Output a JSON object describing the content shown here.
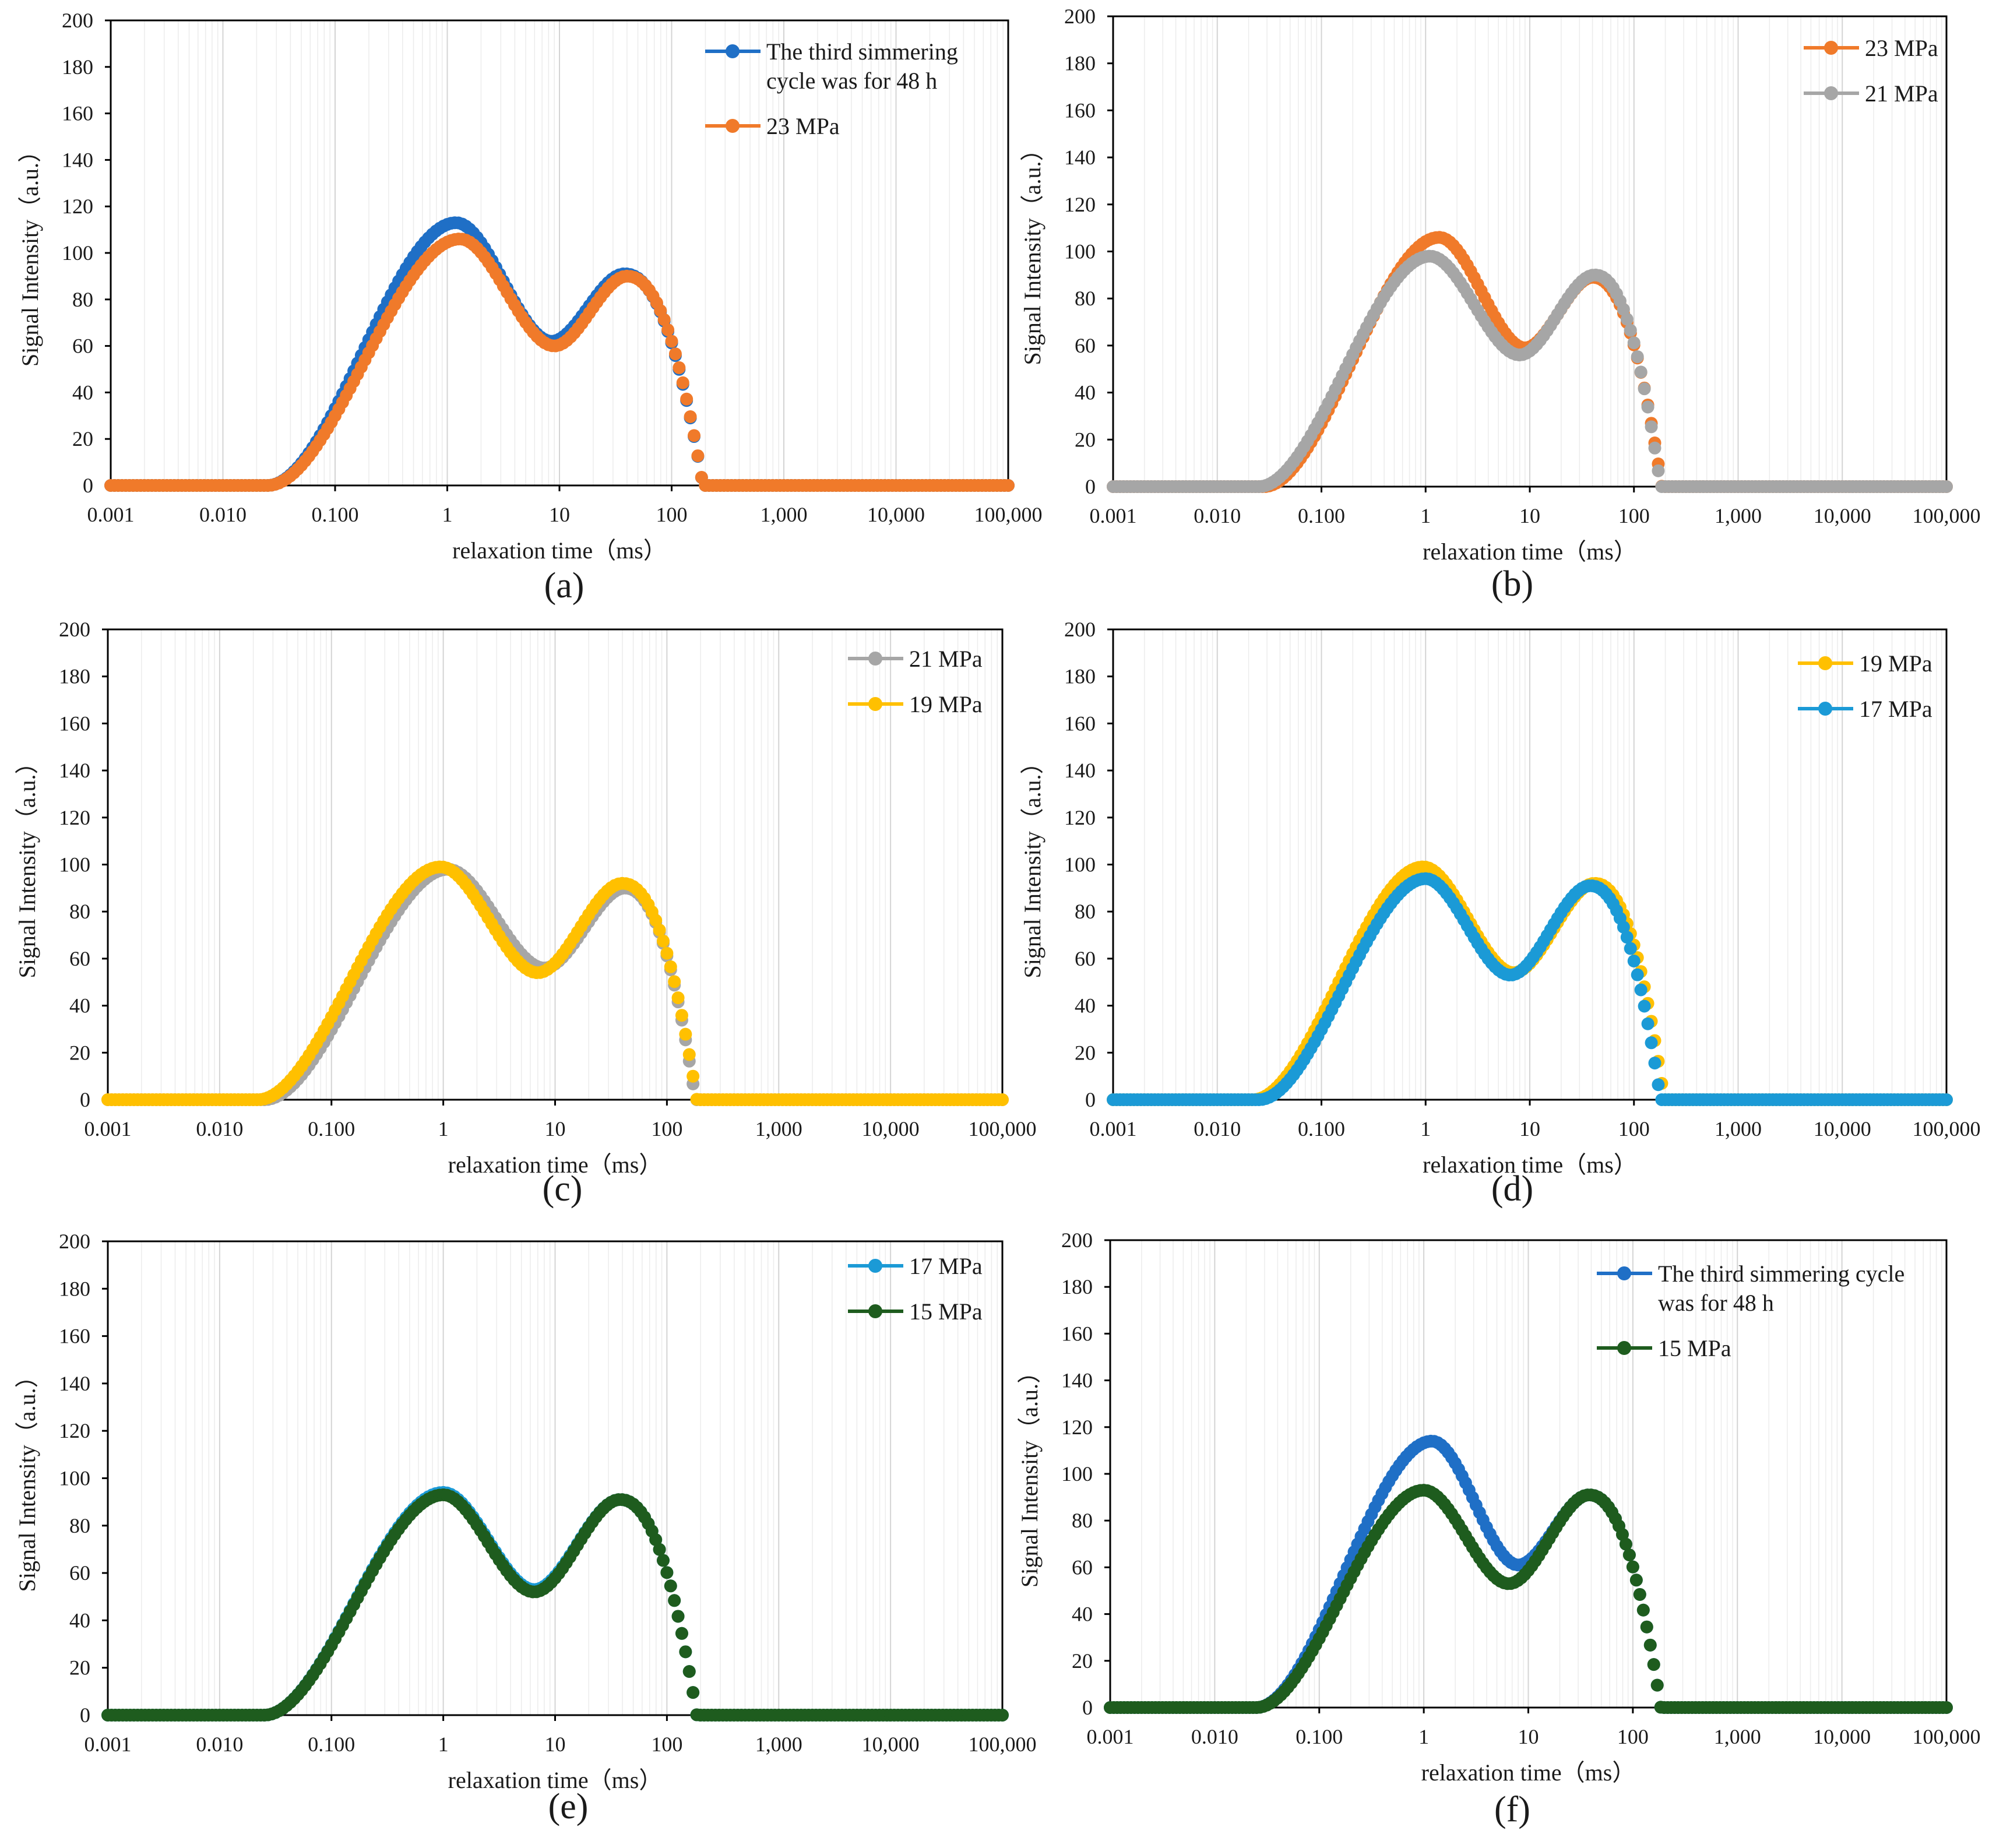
{
  "figure": {
    "panels": [
      {
        "label": "(a)",
        "legend": [
          {
            "lines": [
              "The third simmering",
              "cycle was for 48 h"
            ],
            "color": "#1f6fc6"
          },
          {
            "lines": [
              "23 MPa"
            ],
            "color": "#f07a2a"
          }
        ]
      },
      {
        "label": "(b)",
        "legend": [
          {
            "lines": [
              "23 MPa"
            ],
            "color": "#f07a2a"
          },
          {
            "lines": [
              "21 MPa"
            ],
            "color": "#a6a6a6"
          }
        ]
      },
      {
        "label": "(c)",
        "legend": [
          {
            "lines": [
              "21 MPa"
            ],
            "color": "#a6a6a6"
          },
          {
            "lines": [
              "19 MPa"
            ],
            "color": "#ffc000"
          }
        ]
      },
      {
        "label": "(d)",
        "legend": [
          {
            "lines": [
              "19 MPa"
            ],
            "color": "#ffc000"
          },
          {
            "lines": [
              "17 MPa"
            ],
            "color": "#1b9ad6"
          }
        ]
      },
      {
        "label": "(e)",
        "legend": [
          {
            "lines": [
              "17 MPa"
            ],
            "color": "#1b9ad6"
          },
          {
            "lines": [
              "15 MPa"
            ],
            "color": "#1e5c1e"
          }
        ]
      },
      {
        "label": "(f)",
        "legend": [
          {
            "lines": [
              "The third simmering cycle",
              "was for 48 h"
            ],
            "color": "#1f6fc6"
          },
          {
            "lines": [
              "15 MPa"
            ],
            "color": "#1e5c1e"
          }
        ]
      }
    ]
  },
  "chart_data": [
    {
      "type": "scatter",
      "title": "(a)",
      "xscale": "log",
      "xlabel": "relaxation time（ms）",
      "ylabel": "Signal Intensity（a.u.）",
      "xlim": [
        0.001,
        100000
      ],
      "ylim": [
        0,
        200
      ],
      "xticks": [
        "0.001",
        "0.010",
        "0.100",
        "1",
        "10",
        "100",
        "1,000",
        "10,000",
        "100,000"
      ],
      "yticks": [
        "0",
        "20",
        "40",
        "60",
        "80",
        "100",
        "120",
        "140",
        "160",
        "180",
        "200"
      ],
      "series": [
        {
          "name": "The third simmering cycle was for 48 h",
          "color": "#1f6fc6",
          "onset": 0.025,
          "end": 190,
          "peak1": {
            "x": 1.2,
            "y": 113
          },
          "valley": {
            "x": 8.5,
            "y": 62
          },
          "peak2": {
            "x": 38,
            "y": 91
          }
        },
        {
          "name": "23 MPa",
          "color": "#f07a2a",
          "onset": 0.025,
          "end": 190,
          "peak1": {
            "x": 1.3,
            "y": 106
          },
          "valley": {
            "x": 9,
            "y": 60
          },
          "peak2": {
            "x": 40,
            "y": 90
          }
        }
      ]
    },
    {
      "type": "scatter",
      "title": "(b)",
      "xscale": "log",
      "xlabel": "relaxation time（ms）",
      "ylabel": "Signal Intensity（a.u.）",
      "xlim": [
        0.001,
        100000
      ],
      "ylim": [
        0,
        200
      ],
      "xticks": [
        "0.001",
        "0.010",
        "0.100",
        "1",
        "10",
        "100",
        "1,000",
        "10,000",
        "100,000"
      ],
      "yticks": [
        "0",
        "20",
        "40",
        "60",
        "80",
        "100",
        "120",
        "140",
        "160",
        "180",
        "200"
      ],
      "series": [
        {
          "name": "23 MPa",
          "color": "#f07a2a",
          "onset": 0.028,
          "end": 185,
          "peak1": {
            "x": 1.35,
            "y": 106
          },
          "valley": {
            "x": 9,
            "y": 59
          },
          "peak2": {
            "x": 40,
            "y": 89
          }
        },
        {
          "name": "21 MPa",
          "color": "#a6a6a6",
          "onset": 0.025,
          "end": 180,
          "peak1": {
            "x": 1.1,
            "y": 98
          },
          "valley": {
            "x": 8,
            "y": 56
          },
          "peak2": {
            "x": 42,
            "y": 90
          }
        }
      ]
    },
    {
      "type": "scatter",
      "title": "(c)",
      "xscale": "log",
      "xlabel": "relaxation time（ms）",
      "ylabel": "Signal Intensity（a.u.）",
      "xlim": [
        0.001,
        100000
      ],
      "ylim": [
        0,
        200
      ],
      "xticks": [
        "0.001",
        "0.010",
        "0.100",
        "1",
        "10",
        "100",
        "1,000",
        "10,000",
        "100,000"
      ],
      "yticks": [
        "0",
        "20",
        "40",
        "60",
        "80",
        "100",
        "120",
        "140",
        "160",
        "180",
        "200"
      ],
      "series": [
        {
          "name": "21 MPa",
          "color": "#a6a6a6",
          "onset": 0.025,
          "end": 180,
          "peak1": {
            "x": 1.1,
            "y": 98
          },
          "valley": {
            "x": 8,
            "y": 56
          },
          "peak2": {
            "x": 42,
            "y": 90
          }
        },
        {
          "name": "19 MPa",
          "color": "#ffc000",
          "onset": 0.022,
          "end": 185,
          "peak1": {
            "x": 0.95,
            "y": 99
          },
          "valley": {
            "x": 7,
            "y": 54
          },
          "peak2": {
            "x": 40,
            "y": 92
          }
        }
      ]
    },
    {
      "type": "scatter",
      "title": "(d)",
      "xscale": "log",
      "xlabel": "relaxation time（ms）",
      "ylabel": "Signal Intensity（a.u.）",
      "xlim": [
        0.001,
        100000
      ],
      "ylim": [
        0,
        200
      ],
      "xticks": [
        "0.001",
        "0.010",
        "0.100",
        "1",
        "10",
        "100",
        "1,000",
        "10,000",
        "100,000"
      ],
      "yticks": [
        "0",
        "20",
        "40",
        "60",
        "80",
        "100",
        "120",
        "140",
        "160",
        "180",
        "200"
      ],
      "series": [
        {
          "name": "19 MPa",
          "color": "#ffc000",
          "onset": 0.022,
          "end": 195,
          "peak1": {
            "x": 0.95,
            "y": 99
          },
          "valley": {
            "x": 7,
            "y": 54
          },
          "peak2": {
            "x": 42,
            "y": 92
          }
        },
        {
          "name": "17 MPa",
          "color": "#1b9ad6",
          "onset": 0.025,
          "end": 180,
          "peak1": {
            "x": 1.0,
            "y": 94
          },
          "valley": {
            "x": 6.5,
            "y": 53
          },
          "peak2": {
            "x": 38,
            "y": 91
          }
        }
      ]
    },
    {
      "type": "scatter",
      "title": "(e)",
      "xscale": "log",
      "xlabel": "relaxation time（ms）",
      "ylabel": "Signal Intensity（a.u.）",
      "xlim": [
        0.001,
        100000
      ],
      "ylim": [
        0,
        200
      ],
      "xticks": [
        "0.001",
        "0.010",
        "0.100",
        "1",
        "10",
        "100",
        "1,000",
        "10,000",
        "100,000"
      ],
      "yticks": [
        "0",
        "20",
        "40",
        "60",
        "80",
        "100",
        "120",
        "140",
        "160",
        "180",
        "200"
      ],
      "series": [
        {
          "name": "17 MPa",
          "color": "#1b9ad6",
          "onset": 0.025,
          "end": 185,
          "peak1": {
            "x": 1.0,
            "y": 94
          },
          "valley": {
            "x": 6.5,
            "y": 53
          },
          "peak2": {
            "x": 38,
            "y": 91
          }
        },
        {
          "name": "15 MPa",
          "color": "#1e5c1e",
          "onset": 0.025,
          "end": 185,
          "peak1": {
            "x": 1.0,
            "y": 93
          },
          "valley": {
            "x": 6.5,
            "y": 52
          },
          "peak2": {
            "x": 38,
            "y": 91
          }
        }
      ]
    },
    {
      "type": "scatter",
      "title": "(f)",
      "xscale": "log",
      "xlabel": "relaxation time（ms）",
      "ylabel": "Signal Intensity（a.u.）",
      "xlim": [
        0.001,
        100000
      ],
      "ylim": [
        0,
        200
      ],
      "xticks": [
        "0.001",
        "0.010",
        "0.100",
        "1",
        "10",
        "100",
        "1,000",
        "10,000",
        "100,000"
      ],
      "yticks": [
        "0",
        "20",
        "40",
        "60",
        "80",
        "100",
        "120",
        "140",
        "160",
        "180",
        "200"
      ],
      "series": [
        {
          "name": "The third simmering cycle was for 48 h",
          "color": "#1f6fc6",
          "onset": 0.025,
          "end": 185,
          "peak1": {
            "x": 1.2,
            "y": 114
          },
          "valley": {
            "x": 8,
            "y": 61
          },
          "peak2": {
            "x": 38,
            "y": 91
          }
        },
        {
          "name": "15 MPa",
          "color": "#1e5c1e",
          "onset": 0.025,
          "end": 185,
          "peak1": {
            "x": 1.0,
            "y": 93
          },
          "valley": {
            "x": 6.5,
            "y": 53
          },
          "peak2": {
            "x": 38,
            "y": 91
          }
        }
      ]
    }
  ]
}
